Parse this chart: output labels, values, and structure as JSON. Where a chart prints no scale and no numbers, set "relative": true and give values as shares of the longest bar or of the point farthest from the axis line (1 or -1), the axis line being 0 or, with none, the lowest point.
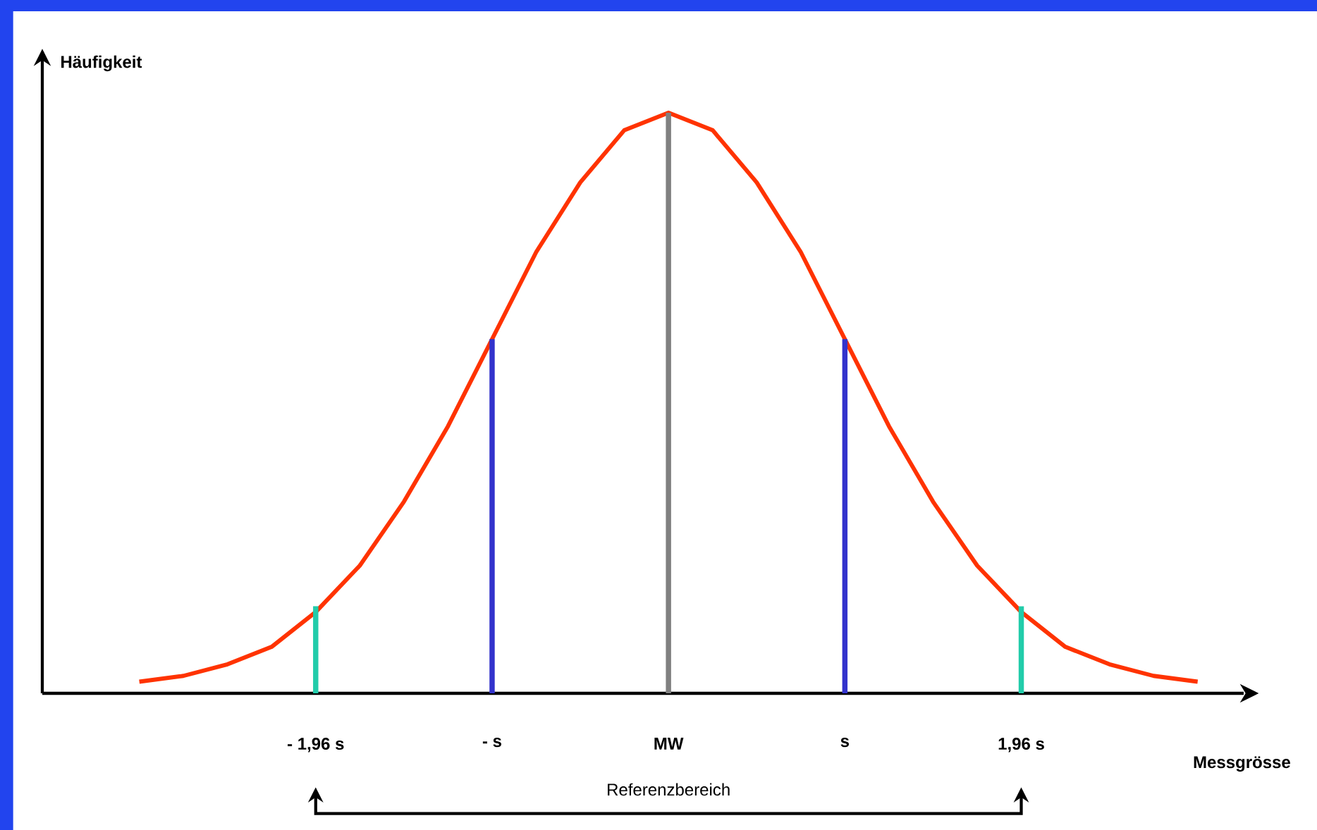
{
  "chart_data": {
    "type": "line",
    "relative": true,
    "xlabel": "Messgrösse",
    "ylabel": "Häufigkeit",
    "categories": [
      null,
      null,
      null,
      null,
      "- 1,96 s",
      null,
      null,
      null,
      "- s",
      null,
      null,
      null,
      "MW",
      null,
      null,
      null,
      "s",
      null,
      null,
      null,
      "1,96 s",
      null,
      null,
      null,
      null
    ],
    "marker": "none",
    "line_style": "solid",
    "series": [
      {
        "color": "#ff3300",
        "values": [
          0.02,
          0.03,
          0.05,
          0.08,
          0.14,
          0.22,
          0.33,
          0.46,
          0.61,
          0.76,
          0.88,
          0.97,
          1,
          0.97,
          0.88,
          0.76,
          0.61,
          0.46,
          0.33,
          0.22,
          0.14,
          0.08,
          0.05,
          0.03,
          0.02
        ]
      },
      {
        "type": "bar",
        "values": [
          null,
          null,
          null,
          null,
          0.15,
          null,
          null,
          null,
          0.61,
          null,
          null,
          null,
          1,
          null,
          null,
          null,
          0.61,
          null,
          null,
          null,
          0.15,
          null,
          null,
          null,
          null
        ],
        "colors": [
          null,
          null,
          null,
          null,
          "#22ccaa",
          null,
          null,
          null,
          "#3333cc",
          null,
          null,
          null,
          "#808080",
          null,
          null,
          null,
          "#3333cc",
          null,
          null,
          null,
          "#22ccaa",
          null,
          null,
          null,
          null
        ]
      }
    ],
    "annotations": [
      "Referenzbereich"
    ]
  }
}
